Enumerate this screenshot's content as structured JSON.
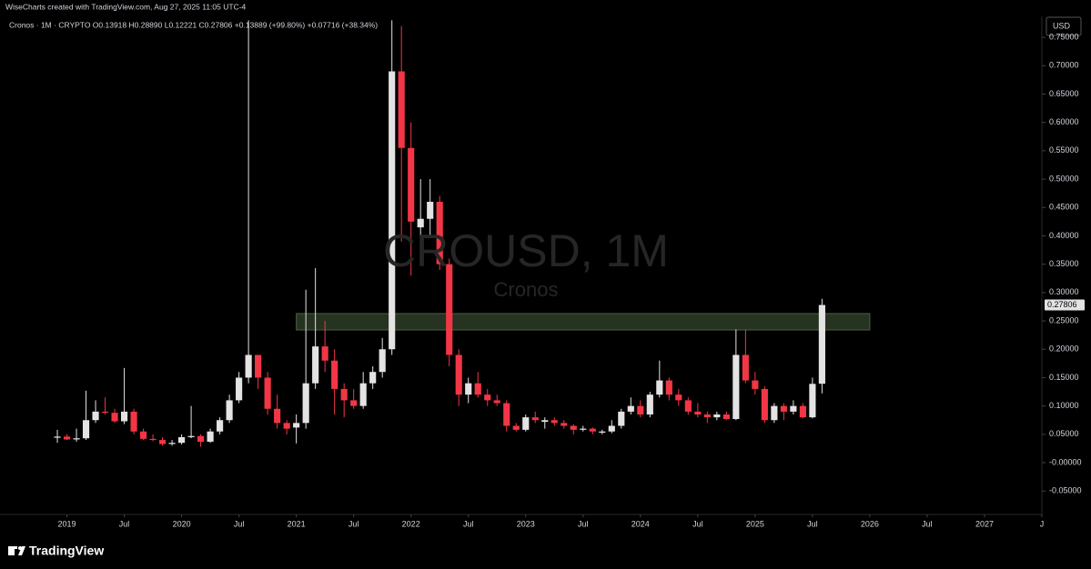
{
  "chart_data": {
    "type": "candlestick",
    "attribution": "WiseCharts created with TradingView.com, Aug 27, 2025 11:05 UTC-4",
    "legend_text": "Cronos · 1M · CRYPTO  O0.13918  H0.28890  L0.12221  C0.27806  +0.13889 (+99.80%)  +0.07716 (+38.34%)",
    "watermark": "CROUSD, 1M",
    "watermark_subtitle": "Cronos",
    "currency": "USD",
    "brand": "TradingView",
    "up_color": "#e3e3e3",
    "down_color": "#f23645",
    "x": [
      "2018-12",
      "2019-01",
      "2019-02",
      "2019-03",
      "2019-04",
      "2019-05",
      "2019-06",
      "2019-07",
      "2019-08",
      "2019-09",
      "2019-10",
      "2019-11",
      "2019-12",
      "2020-01",
      "2020-02",
      "2020-03",
      "2020-04",
      "2020-05",
      "2020-06",
      "2020-07",
      "2020-08",
      "2020-09",
      "2020-10",
      "2020-11",
      "2020-12",
      "2021-01",
      "2021-02",
      "2021-03",
      "2021-04",
      "2021-05",
      "2021-06",
      "2021-07",
      "2021-08",
      "2021-09",
      "2021-10",
      "2021-11",
      "2021-12",
      "2022-01",
      "2022-02",
      "2022-03",
      "2022-04",
      "2022-05",
      "2022-06",
      "2022-07",
      "2022-08",
      "2022-09",
      "2022-10",
      "2022-11",
      "2022-12",
      "2023-01",
      "2023-02",
      "2023-03",
      "2023-04",
      "2023-05",
      "2023-06",
      "2023-07",
      "2023-08",
      "2023-09",
      "2023-10",
      "2023-11",
      "2023-12",
      "2024-01",
      "2024-02",
      "2024-03",
      "2024-04",
      "2024-05",
      "2024-06",
      "2024-07",
      "2024-08",
      "2024-09",
      "2024-10",
      "2024-11",
      "2024-12",
      "2025-01",
      "2025-02",
      "2025-03",
      "2025-04",
      "2025-05",
      "2025-06",
      "2025-07",
      "2025-08"
    ],
    "open": [
      0.044,
      0.046,
      0.041,
      0.043,
      0.075,
      0.09,
      0.088,
      0.073,
      0.09,
      0.055,
      0.042,
      0.04,
      0.033,
      0.035,
      0.045,
      0.047,
      0.037,
      0.055,
      0.075,
      0.11,
      0.15,
      0.19,
      0.15,
      0.095,
      0.07,
      0.062,
      0.07,
      0.14,
      0.205,
      0.18,
      0.13,
      0.11,
      0.1,
      0.14,
      0.16,
      0.2,
      0.69,
      0.555,
      0.415,
      0.43,
      0.46,
      0.35,
      0.19,
      0.12,
      0.14,
      0.12,
      0.11,
      0.105,
      0.065,
      0.058,
      0.08,
      0.072,
      0.075,
      0.07,
      0.065,
      0.058,
      0.06,
      0.053,
      0.055,
      0.065,
      0.09,
      0.1,
      0.085,
      0.12,
      0.145,
      0.12,
      0.11,
      0.09,
      0.085,
      0.08,
      0.085,
      0.077,
      0.19,
      0.145,
      0.13,
      0.075,
      0.1,
      0.09,
      0.1,
      0.08,
      0.13918
    ],
    "high": [
      0.058,
      0.05,
      0.06,
      0.127,
      0.11,
      0.115,
      0.095,
      0.167,
      0.095,
      0.06,
      0.05,
      0.045,
      0.04,
      0.05,
      0.1,
      0.05,
      0.06,
      0.08,
      0.12,
      0.16,
      0.78,
      0.19,
      0.16,
      0.12,
      0.075,
      0.085,
      0.305,
      0.343,
      0.25,
      0.2,
      0.14,
      0.13,
      0.16,
      0.17,
      0.22,
      0.78,
      0.77,
      0.6,
      0.5,
      0.5,
      0.47,
      0.36,
      0.2,
      0.15,
      0.16,
      0.13,
      0.12,
      0.11,
      0.07,
      0.085,
      0.09,
      0.08,
      0.08,
      0.075,
      0.068,
      0.065,
      0.062,
      0.058,
      0.075,
      0.095,
      0.115,
      0.11,
      0.125,
      0.18,
      0.15,
      0.13,
      0.115,
      0.105,
      0.09,
      0.09,
      0.09,
      0.235,
      0.235,
      0.16,
      0.135,
      0.105,
      0.105,
      0.11,
      0.105,
      0.15,
      0.2889
    ],
    "low": [
      0.035,
      0.04,
      0.037,
      0.04,
      0.07,
      0.085,
      0.07,
      0.068,
      0.05,
      0.04,
      0.038,
      0.03,
      0.03,
      0.032,
      0.043,
      0.028,
      0.035,
      0.05,
      0.07,
      0.105,
      0.14,
      0.13,
      0.085,
      0.06,
      0.05,
      0.034,
      0.06,
      0.13,
      0.16,
      0.085,
      0.08,
      0.095,
      0.095,
      0.13,
      0.15,
      0.19,
      0.39,
      0.33,
      0.35,
      0.4,
      0.34,
      0.17,
      0.1,
      0.105,
      0.115,
      0.1,
      0.1,
      0.055,
      0.055,
      0.055,
      0.07,
      0.06,
      0.065,
      0.06,
      0.05,
      0.055,
      0.05,
      0.05,
      0.052,
      0.06,
      0.085,
      0.08,
      0.08,
      0.115,
      0.11,
      0.1,
      0.085,
      0.08,
      0.07,
      0.075,
      0.075,
      0.075,
      0.14,
      0.12,
      0.07,
      0.07,
      0.075,
      0.085,
      0.078,
      0.078,
      0.12221
    ],
    "close": [
      0.046,
      0.041,
      0.043,
      0.075,
      0.09,
      0.088,
      0.073,
      0.09,
      0.055,
      0.042,
      0.04,
      0.033,
      0.035,
      0.045,
      0.047,
      0.037,
      0.055,
      0.075,
      0.11,
      0.15,
      0.19,
      0.15,
      0.095,
      0.07,
      0.06,
      0.07,
      0.14,
      0.205,
      0.18,
      0.13,
      0.11,
      0.1,
      0.14,
      0.16,
      0.2,
      0.69,
      0.555,
      0.425,
      0.43,
      0.46,
      0.35,
      0.19,
      0.12,
      0.14,
      0.12,
      0.11,
      0.105,
      0.065,
      0.058,
      0.08,
      0.075,
      0.075,
      0.07,
      0.065,
      0.058,
      0.06,
      0.055,
      0.055,
      0.065,
      0.09,
      0.1,
      0.085,
      0.12,
      0.145,
      0.12,
      0.11,
      0.09,
      0.085,
      0.08,
      0.085,
      0.077,
      0.19,
      0.145,
      0.13,
      0.075,
      0.1,
      0.09,
      0.1,
      0.08,
      0.139,
      0.27806
    ],
    "zone": {
      "x": [
        "2021-01",
        "2026-01"
      ],
      "y": [
        0.234,
        0.263
      ],
      "color": "#55704a"
    },
    "xlim": [
      "2018-06",
      "2027-07"
    ],
    "xticks": [
      {
        "value": "2019-01",
        "label": "2019"
      },
      {
        "value": "2019-07",
        "label": "Jul"
      },
      {
        "value": "2020-01",
        "label": "2020"
      },
      {
        "value": "2020-07",
        "label": "Jul"
      },
      {
        "value": "2021-01",
        "label": "2021"
      },
      {
        "value": "2021-07",
        "label": "Jul"
      },
      {
        "value": "2022-01",
        "label": "2022"
      },
      {
        "value": "2022-07",
        "label": "Jul"
      },
      {
        "value": "2023-01",
        "label": "2023"
      },
      {
        "value": "2023-07",
        "label": "Jul"
      },
      {
        "value": "2024-01",
        "label": "2024"
      },
      {
        "value": "2024-07",
        "label": "Jul"
      },
      {
        "value": "2025-01",
        "label": "2025"
      },
      {
        "value": "2025-07",
        "label": "Jul"
      },
      {
        "value": "2026-01",
        "label": "2026"
      },
      {
        "value": "2026-07",
        "label": "Jul"
      },
      {
        "value": "2027-01",
        "label": "2027"
      },
      {
        "value": "2027-07",
        "label": "J"
      }
    ],
    "ylim": [
      -0.0913,
      0.787
    ],
    "yticks": [
      {
        "value": 0.75,
        "label": "0.75000"
      },
      {
        "value": 0.7,
        "label": "0.70000"
      },
      {
        "value": 0.65,
        "label": "0.65000"
      },
      {
        "value": 0.6,
        "label": "0.60000"
      },
      {
        "value": 0.55,
        "label": "0.55000"
      },
      {
        "value": 0.5,
        "label": "0.50000"
      },
      {
        "value": 0.45,
        "label": "0.45000"
      },
      {
        "value": 0.4,
        "label": "0.40000"
      },
      {
        "value": 0.35,
        "label": "0.35000"
      },
      {
        "value": 0.3,
        "label": "0.30000"
      },
      {
        "value": 0.25,
        "label": "0.25000"
      },
      {
        "value": 0.2,
        "label": "0.20000"
      },
      {
        "value": 0.15,
        "label": "0.15000"
      },
      {
        "value": 0.1,
        "label": "0.10000"
      },
      {
        "value": 0.05,
        "label": "0.05000"
      },
      {
        "value": 0,
        "label": "-0.00000"
      },
      {
        "value": -0.05,
        "label": "-0.05000"
      }
    ]
  }
}
